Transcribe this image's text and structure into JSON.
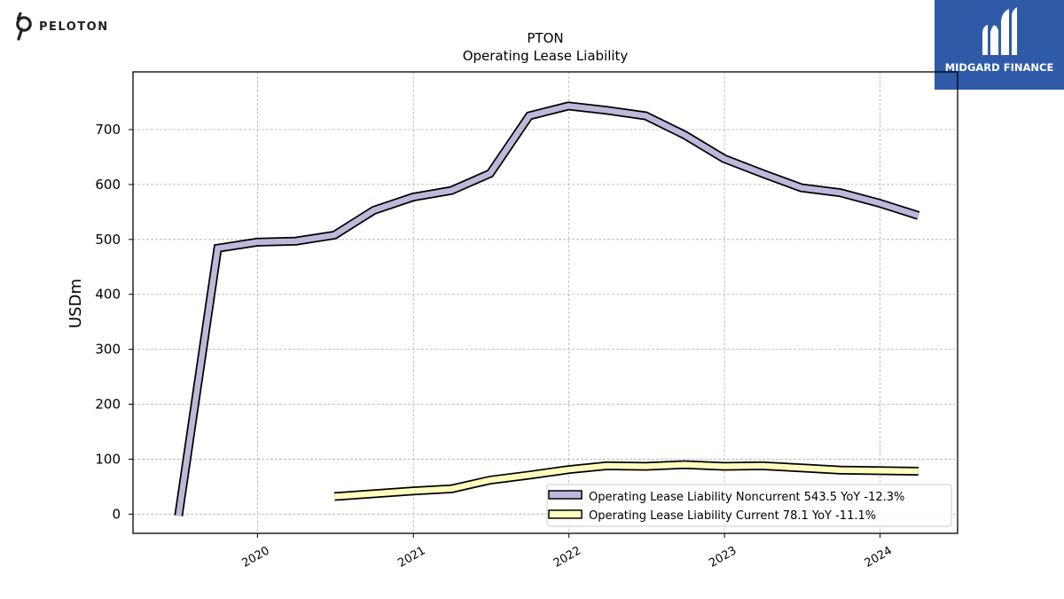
{
  "brand_left": {
    "name": "PELOTON",
    "icon": "peloton-logo-icon"
  },
  "brand_right": {
    "name": "MIDGARD FINANCE",
    "icon": "midgard-logo-icon",
    "color": "#2f5aa8"
  },
  "chart_data": {
    "type": "line",
    "title": "PTON",
    "subtitle": "Operating Lease Liability",
    "ylabel": "USDm",
    "xlabel": "",
    "ylim": [
      -35,
      805
    ],
    "xlim": [
      "2019-03-15",
      "2024-07-01"
    ],
    "yticks": [
      0,
      100,
      200,
      300,
      400,
      500,
      600,
      700
    ],
    "xticks": [
      "2020",
      "2021",
      "2022",
      "2023",
      "2024"
    ],
    "grid": true,
    "legend_position": "lower-right",
    "series": [
      {
        "name": "Operating Lease Liability Noncurrent",
        "legend_label": "Operating Lease Liability Noncurrent  543.5 YoY -12.3%",
        "color": "#bcb9db",
        "x": [
          "2019-06-30",
          "2019-09-30",
          "2019-12-31",
          "2020-03-31",
          "2020-06-30",
          "2020-09-30",
          "2020-12-31",
          "2021-03-31",
          "2021-06-30",
          "2021-09-30",
          "2021-12-31",
          "2022-03-31",
          "2022-06-30",
          "2022-09-30",
          "2022-12-31",
          "2023-03-31",
          "2023-06-30",
          "2023-09-30",
          "2023-12-31",
          "2024-03-31"
        ],
        "values": [
          -3,
          484,
          495,
          497,
          508,
          553,
          577,
          589,
          620,
          725,
          743,
          735,
          725,
          690,
          647,
          620,
          594,
          585,
          566,
          543.5
        ]
      },
      {
        "name": "Operating Lease Liability Current",
        "legend_label": "Operating Lease Liability Current  78.1 YoY -11.1%",
        "color": "#ffffbd",
        "x": [
          "2020-06-30",
          "2020-09-30",
          "2020-12-31",
          "2021-03-31",
          "2021-06-30",
          "2021-09-30",
          "2021-12-31",
          "2022-03-31",
          "2022-06-30",
          "2022-09-30",
          "2022-12-31",
          "2023-03-31",
          "2023-06-30",
          "2023-09-30",
          "2023-12-31",
          "2024-03-31"
        ],
        "values": [
          32,
          37,
          42,
          46,
          62,
          71,
          81,
          88,
          87,
          90,
          87,
          88,
          84,
          80,
          79,
          78.1
        ]
      }
    ]
  }
}
